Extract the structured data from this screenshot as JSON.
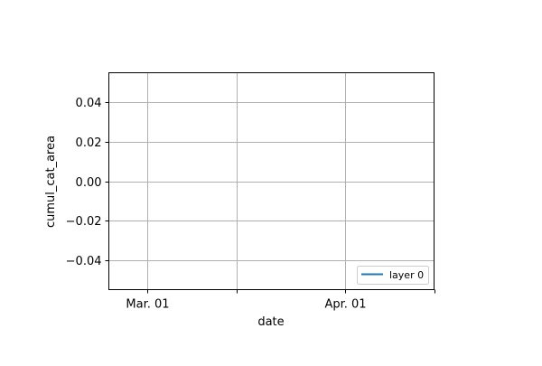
{
  "chart_data": {
    "type": "line",
    "title": "",
    "xlabel": "date",
    "ylabel": "cumul_cat_area",
    "x_ticks": [
      {
        "date": "2000-03-01",
        "label": "Mar. 01"
      },
      {
        "date": "2000-03-15",
        "label": ""
      },
      {
        "date": "2000-04-01",
        "label": "Apr. 01"
      },
      {
        "date": "2000-04-15",
        "label": ""
      }
    ],
    "xlim": [
      "2000-02-24",
      "2000-04-15"
    ],
    "y_ticks": [
      {
        "value": 0.04,
        "label": "0.04"
      },
      {
        "value": 0.02,
        "label": "0.02"
      },
      {
        "value": 0.0,
        "label": "0.00"
      },
      {
        "value": -0.02,
        "label": "−0.02"
      },
      {
        "value": -0.04,
        "label": "−0.04"
      }
    ],
    "ylim": [
      -0.055,
      0.055
    ],
    "grid": true,
    "legend_position": "lower-right",
    "series": [
      {
        "name": "layer 0",
        "color": "#1f77b4",
        "x": [],
        "y": []
      }
    ]
  }
}
